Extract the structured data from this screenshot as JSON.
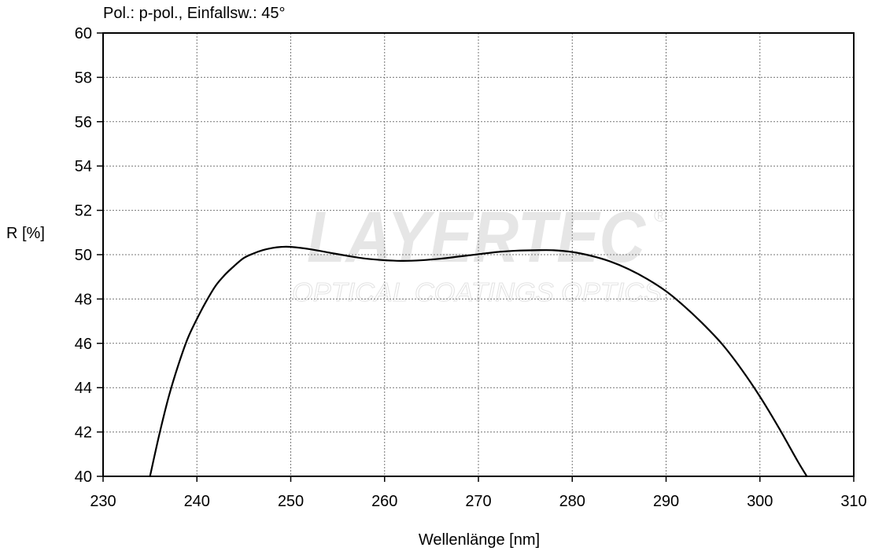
{
  "chart_data": {
    "type": "line",
    "title": "Pol.: p-pol., Einfallsw.: 45°",
    "xlabel": "Wellenlänge [nm]",
    "ylabel": "R [%]",
    "xlim": [
      230,
      310
    ],
    "ylim": [
      40,
      60
    ],
    "xticks": [
      230,
      240,
      250,
      260,
      270,
      280,
      290,
      300,
      310
    ],
    "yticks": [
      40,
      42,
      44,
      46,
      48,
      50,
      52,
      54,
      56,
      58,
      60
    ],
    "grid": true,
    "series": [
      {
        "x": [
          235,
          236,
          237,
          238,
          239,
          240,
          241,
          242,
          243,
          244,
          245,
          246,
          247,
          248,
          249,
          250,
          252,
          254,
          256,
          258,
          260,
          262,
          264,
          266,
          268,
          270,
          272,
          274,
          276,
          278,
          280,
          282,
          284,
          286,
          288,
          290,
          292,
          294,
          296,
          298,
          300,
          302,
          304,
          305
        ],
        "y": [
          40.0,
          41.9,
          43.6,
          45.0,
          46.2,
          47.1,
          47.9,
          48.6,
          49.1,
          49.5,
          49.85,
          50.05,
          50.2,
          50.3,
          50.35,
          50.35,
          50.25,
          50.1,
          49.95,
          49.82,
          49.75,
          49.72,
          49.75,
          49.82,
          49.92,
          50.02,
          50.12,
          50.18,
          50.2,
          50.2,
          50.12,
          49.95,
          49.7,
          49.35,
          48.9,
          48.35,
          47.65,
          46.85,
          45.95,
          44.85,
          43.6,
          42.2,
          40.7,
          40.0
        ]
      }
    ],
    "watermark": {
      "logo": "LAYERTEC",
      "tagline": "OPTICAL COATINGS OPTICS",
      "registered": "®"
    }
  }
}
